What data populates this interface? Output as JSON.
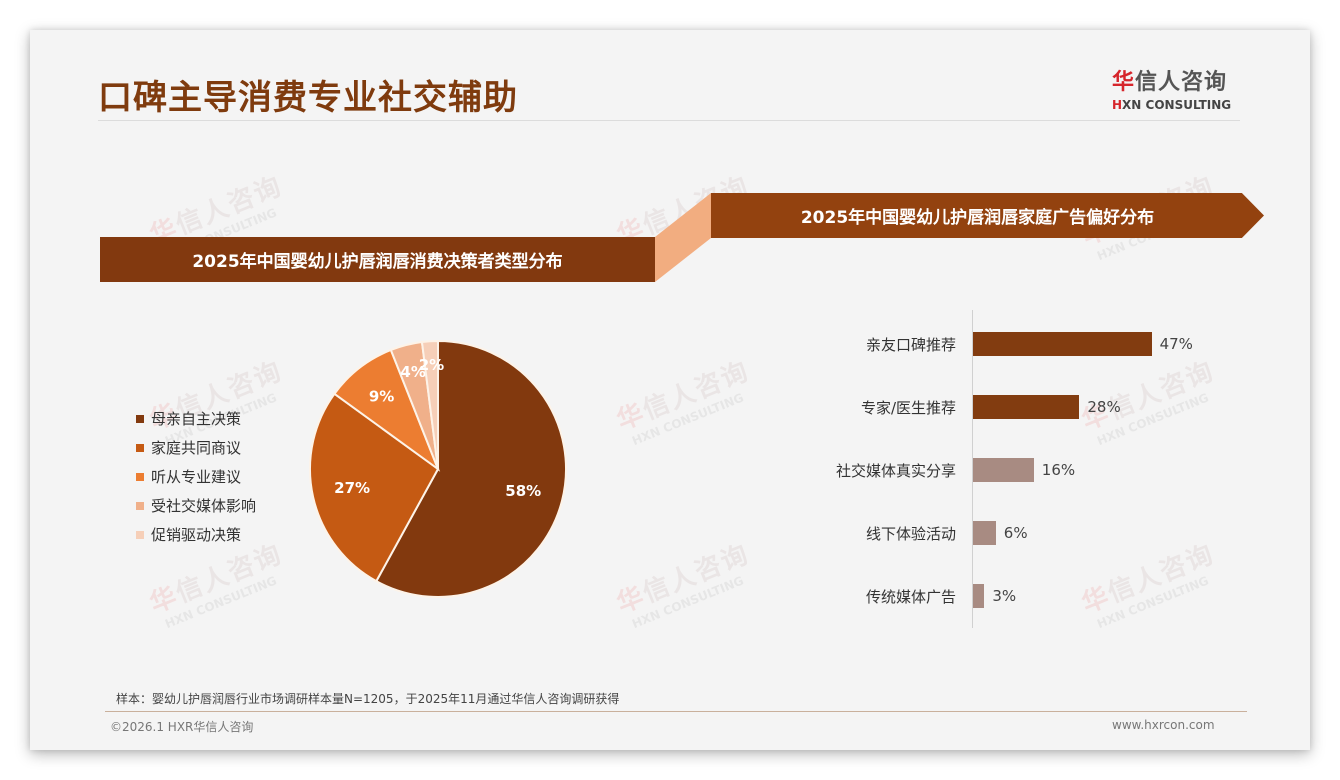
{
  "header": {
    "title": "口碑主导消费专业社交辅助",
    "logo": {
      "cn_accent": "华",
      "cn_rest": "信人咨询",
      "en_accent": "H",
      "en_rest": "XN CONSULTING"
    }
  },
  "watermark": {
    "cn_accent": "华",
    "cn_rest": "信人咨询",
    "en": "HXN CONSULTING"
  },
  "colors": {
    "brand_dark": "#82390f",
    "banner_right": "#93420f",
    "connector": "#f2ad80",
    "bar_dark": "#823c10",
    "bar_light": "#a88b82"
  },
  "chart_data": [
    {
      "type": "pie",
      "title": "2025年中国婴幼儿护唇润唇消费决策者类型分布",
      "categories": [
        "母亲自主决策",
        "家庭共同商议",
        "听从专业建议",
        "受社交媒体影响",
        "促销驱动决策"
      ],
      "values": [
        58,
        27,
        9,
        4,
        2
      ],
      "unit": "%",
      "colors": [
        "#82390e",
        "#c55a13",
        "#ec7d31",
        "#f0b08a",
        "#f6cfb8"
      ],
      "data_labels": [
        "58%",
        "27%",
        "9%",
        "4%",
        "2%"
      ],
      "start_angle": "12 o'clock, clockwise",
      "legend_position": "left"
    },
    {
      "type": "bar",
      "orientation": "horizontal",
      "title": "2025年中国婴幼儿护唇润唇家庭广告偏好分布",
      "categories": [
        "亲友口碑推荐",
        "专家/医生推荐",
        "社交媒体真实分享",
        "线下体验活动",
        "传统媒体广告"
      ],
      "values": [
        47,
        28,
        16,
        6,
        3
      ],
      "unit": "%",
      "data_labels": [
        "47%",
        "28%",
        "16%",
        "6%",
        "3%"
      ],
      "colors": [
        "#823c10",
        "#823c10",
        "#a88b82",
        "#a88b82",
        "#a88b82"
      ],
      "grid": false,
      "xlabel": "",
      "ylabel": ""
    }
  ],
  "footer": {
    "sample_note": "样本：婴幼儿护唇润唇行业市场调研样本量N=1205，于2025年11月通过华信人咨询调研获得",
    "copyright": "©2026.1 HXR华信人咨询",
    "website": "www.hxrcon.com"
  }
}
